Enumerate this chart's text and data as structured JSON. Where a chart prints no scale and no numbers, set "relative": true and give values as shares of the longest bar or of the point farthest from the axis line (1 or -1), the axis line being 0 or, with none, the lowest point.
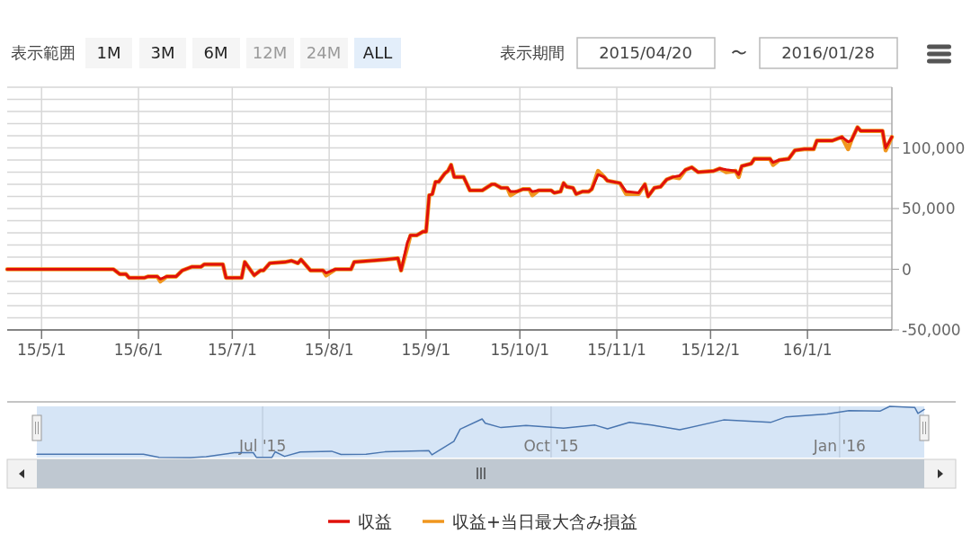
{
  "chart_data": [
    {
      "type": "line",
      "xlim": [
        "2015-04-20",
        "2016-01-28"
      ],
      "xticks": [
        {
          "value": "2015-05-01",
          "label": "15/5/1"
        },
        {
          "value": "2015-06-01",
          "label": "15/6/1"
        },
        {
          "value": "2015-07-01",
          "label": "15/7/1"
        },
        {
          "value": "2015-08-01",
          "label": "15/8/1"
        },
        {
          "value": "2015-09-01",
          "label": "15/9/1"
        },
        {
          "value": "2015-10-01",
          "label": "15/10/1"
        },
        {
          "value": "2015-11-01",
          "label": "15/11/1"
        },
        {
          "value": "2015-12-01",
          "label": "15/12/1"
        },
        {
          "value": "2016-01-01",
          "label": "16/1/1"
        }
      ],
      "ylim": [
        -50000,
        150000
      ],
      "yticks": [
        {
          "value": -50000,
          "label": "-50,000"
        },
        {
          "value": -40000,
          "label": null
        },
        {
          "value": -30000,
          "label": null
        },
        {
          "value": -20000,
          "label": null
        },
        {
          "value": -10000,
          "label": null
        },
        0,
        {
          "value": 10000,
          "label": null
        },
        {
          "value": 20000,
          "label": null
        },
        {
          "value": 30000,
          "label": null
        },
        {
          "value": 40000,
          "label": null
        },
        {
          "value": 50000,
          "label": "50,000"
        },
        {
          "value": 60000,
          "label": null
        },
        {
          "value": 70000,
          "label": null
        },
        {
          "value": 80000,
          "label": null
        },
        {
          "value": 90000,
          "label": null
        },
        {
          "value": 100000,
          "label": "100,000"
        },
        {
          "value": 110000,
          "label": null
        },
        {
          "value": 120000,
          "label": null
        },
        {
          "value": 130000,
          "label": null
        },
        {
          "value": 140000,
          "label": null
        },
        {
          "value": 150000,
          "label": null
        }
      ],
      "grid": true,
      "legend": "bottom",
      "line_style": "solid",
      "annotations": [
        "表示範囲",
        "1M",
        "3M",
        "6M",
        "12M",
        "24M",
        "ALL",
        "表示期間",
        "2015/04/20",
        "〜",
        "2016/01/28"
      ],
      "x": [
        "2015-04-20",
        "2015-05-24",
        "2015-05-26",
        "2015-05-28",
        "2015-05-29",
        "2015-06-03",
        "2015-06-04",
        "2015-06-07",
        "2015-06-08",
        "2015-06-10",
        "2015-06-13",
        "2015-06-15",
        "2015-06-18",
        "2015-06-21",
        "2015-06-22",
        "2015-06-28",
        "2015-06-29",
        "2015-07-04",
        "2015-07-05",
        "2015-07-08",
        "2015-07-10",
        "2015-07-11",
        "2015-07-13",
        "2015-07-18",
        "2015-07-20",
        "2015-07-22",
        "2015-07-23",
        "2015-07-24",
        "2015-07-26",
        "2015-07-30",
        "2015-07-31",
        "2015-08-03",
        "2015-08-08",
        "2015-08-09",
        "2015-08-19",
        "2015-08-23",
        "2015-08-24",
        "2015-08-26",
        "2015-08-27",
        "2015-08-29",
        "2015-08-31",
        "2015-09-01",
        "2015-09-02",
        "2015-09-03",
        "2015-09-04",
        "2015-09-05",
        "2015-09-07",
        "2015-09-08",
        "2015-09-09",
        "2015-09-10",
        "2015-09-13",
        "2015-09-15",
        "2015-09-19",
        "2015-09-22",
        "2015-09-23",
        "2015-09-25",
        "2015-09-27",
        "2015-09-28",
        "2015-09-30",
        "2015-10-02",
        "2015-10-04",
        "2015-10-05",
        "2015-10-07",
        "2015-10-11",
        "2015-10-12",
        "2015-10-14",
        "2015-10-15",
        "2015-10-16",
        "2015-10-18",
        "2015-10-19",
        "2015-10-21",
        "2015-10-23",
        "2015-10-24",
        "2015-10-26",
        "2015-10-28",
        "2015-10-29",
        "2015-11-02",
        "2015-11-04",
        "2015-11-08",
        "2015-11-10",
        "2015-11-11",
        "2015-11-13",
        "2015-11-15",
        "2015-11-17",
        "2015-11-19",
        "2015-11-21",
        "2015-11-23",
        "2015-11-25",
        "2015-11-27",
        "2015-12-02",
        "2015-12-04",
        "2015-12-06",
        "2015-12-09",
        "2015-12-10",
        "2015-12-11",
        "2015-12-14",
        "2015-12-15",
        "2015-12-20",
        "2015-12-21",
        "2015-12-23",
        "2015-12-26",
        "2015-12-28",
        "2015-12-31",
        "2016-01-03",
        "2016-01-04",
        "2016-01-09",
        "2016-01-12",
        "2016-01-14",
        "2016-01-15",
        "2016-01-17",
        "2016-01-18",
        "2016-01-25",
        "2016-01-26",
        "2016-01-28"
      ],
      "series": [
        {
          "name": "収益",
          "color": "#e0110b",
          "values": [
            0,
            0,
            -4000,
            -4000,
            -7000,
            -7000,
            -6000,
            -6000,
            -8000,
            -6000,
            -6000,
            -1000,
            2000,
            2000,
            4000,
            4000,
            -7000,
            -7000,
            6000,
            -5000,
            -1000,
            -1000,
            5000,
            6000,
            7000,
            5000,
            8000,
            5000,
            -1000,
            -1000,
            -3000,
            0,
            0,
            6000,
            8000,
            9000,
            -1000,
            22000,
            28000,
            28000,
            31000,
            31000,
            61000,
            62000,
            72000,
            72000,
            79000,
            81000,
            86000,
            76000,
            76000,
            65000,
            65000,
            70000,
            70000,
            67000,
            67000,
            64000,
            64000,
            66000,
            66000,
            64000,
            65000,
            65000,
            63000,
            64000,
            71000,
            68000,
            67000,
            62000,
            64000,
            64000,
            66000,
            78000,
            76000,
            73000,
            71000,
            64000,
            63000,
            70000,
            60000,
            67000,
            68000,
            74000,
            76000,
            77000,
            82000,
            84000,
            80000,
            81000,
            83000,
            82000,
            81000,
            78000,
            85000,
            87000,
            91000,
            91000,
            88000,
            90000,
            91000,
            98000,
            99000,
            99000,
            106000,
            106000,
            109000,
            105000,
            106000,
            117000,
            114000,
            114000,
            100000,
            109000
          ]
        },
        {
          "name": "収益+当日最大含み損益",
          "color": "#f0961e",
          "values": [
            0,
            0,
            -4000,
            -4000,
            -7000,
            -7000,
            -6000,
            -6000,
            -10000,
            -6000,
            -6000,
            -1000,
            2000,
            2000,
            4000,
            4000,
            -7000,
            -7000,
            6000,
            -5000,
            -1000,
            -1000,
            5000,
            6000,
            7000,
            5000,
            8000,
            5000,
            -1000,
            -1000,
            -5000,
            0,
            0,
            6000,
            8000,
            9000,
            -1000,
            18000,
            28000,
            28000,
            31000,
            31000,
            61000,
            62000,
            72000,
            72000,
            79000,
            81000,
            86000,
            76000,
            76000,
            65000,
            65000,
            70000,
            70000,
            67000,
            67000,
            61000,
            64000,
            66000,
            66000,
            61000,
            65000,
            65000,
            63000,
            64000,
            71000,
            68000,
            67000,
            62000,
            64000,
            64000,
            66000,
            81000,
            76000,
            73000,
            71000,
            62000,
            62000,
            70000,
            60000,
            67000,
            68000,
            74000,
            76000,
            75000,
            82000,
            84000,
            80000,
            81000,
            83000,
            80000,
            81000,
            76000,
            85000,
            87000,
            91000,
            91000,
            86000,
            90000,
            91000,
            98000,
            99000,
            99000,
            106000,
            106000,
            109000,
            99000,
            106000,
            117000,
            114000,
            114000,
            98000,
            109000
          ]
        }
      ]
    },
    {
      "type": "line",
      "relative": true,
      "tick_labels": "x",
      "grid": "x",
      "xlim": [
        "2015-04-20",
        "2016-01-28"
      ],
      "xticks": [
        {
          "value": "2015-07-01",
          "label": "Jul '15"
        },
        {
          "value": "2015-10-01",
          "label": "Oct '15"
        },
        {
          "value": "2016-01-01",
          "label": "Jan '16"
        }
      ],
      "x": [
        "2015-04-20",
        "2015-05-24",
        "2015-05-29",
        "2015-06-08",
        "2015-06-13",
        "2015-06-22",
        "2015-06-28",
        "2015-06-29",
        "2015-07-04",
        "2015-07-05",
        "2015-07-08",
        "2015-07-13",
        "2015-07-23",
        "2015-07-26",
        "2015-08-03",
        "2015-08-09",
        "2015-08-23",
        "2015-08-24",
        "2015-08-31",
        "2015-09-02",
        "2015-09-09",
        "2015-09-10",
        "2015-09-15",
        "2015-09-23",
        "2015-10-05",
        "2015-10-15",
        "2015-10-19",
        "2015-10-26",
        "2015-11-02",
        "2015-11-11",
        "2015-11-25",
        "2015-12-10",
        "2015-12-15",
        "2015-12-28",
        "2016-01-04",
        "2016-01-14",
        "2016-01-17",
        "2016-01-25",
        "2016-01-26",
        "2016-01-28"
      ],
      "series": [
        {
          "color": "#4a76b0",
          "values": [
            0.064,
            0.064,
            0.006,
            0,
            0.018,
            0.096,
            0.096,
            0.006,
            0.006,
            0.114,
            0.024,
            0.108,
            0.125,
            0.06,
            0.064,
            0.112,
            0.136,
            0.054,
            0.317,
            0.556,
            0.754,
            0.67,
            0.586,
            0.628,
            0.574,
            0.634,
            0.562,
            0.687,
            0.634,
            0.544,
            0.735,
            0.687,
            0.796,
            0.849,
            0.916,
            0.909,
            1,
            0.976,
            0.862,
            0.94
          ]
        }
      ]
    }
  ]
}
